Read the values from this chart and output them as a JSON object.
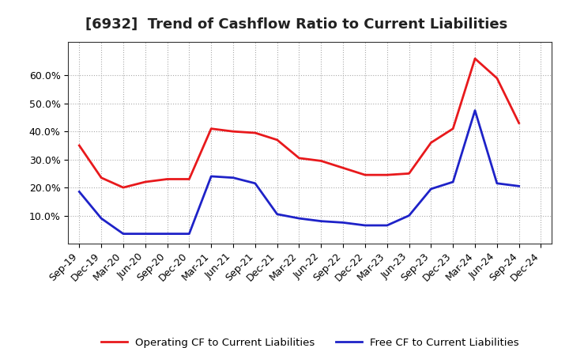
{
  "title": "[6932]  Trend of Cashflow Ratio to Current Liabilities",
  "x_labels": [
    "Sep-19",
    "Dec-19",
    "Mar-20",
    "Jun-20",
    "Sep-20",
    "Dec-20",
    "Mar-21",
    "Jun-21",
    "Sep-21",
    "Dec-21",
    "Mar-22",
    "Jun-22",
    "Sep-22",
    "Dec-22",
    "Mar-23",
    "Jun-23",
    "Sep-23",
    "Dec-23",
    "Mar-24",
    "Jun-24",
    "Sep-24",
    "Dec-24"
  ],
  "operating_cf": [
    0.35,
    0.235,
    0.2,
    0.22,
    0.23,
    0.23,
    0.41,
    0.4,
    0.395,
    0.37,
    0.305,
    0.295,
    0.27,
    0.245,
    0.245,
    0.25,
    0.36,
    0.41,
    0.66,
    0.59,
    0.43,
    null
  ],
  "free_cf": [
    0.185,
    0.09,
    0.035,
    0.035,
    0.035,
    0.035,
    0.24,
    0.235,
    0.215,
    0.105,
    0.09,
    0.08,
    0.075,
    0.065,
    0.065,
    0.1,
    0.195,
    0.22,
    0.475,
    0.215,
    0.205,
    null
  ],
  "operating_color": "#e8191c",
  "free_color": "#1e22c8",
  "ylim": [
    0.0,
    0.72
  ],
  "yticks": [
    0.1,
    0.2,
    0.3,
    0.4,
    0.5,
    0.6
  ],
  "legend_operating": "Operating CF to Current Liabilities",
  "legend_free": "Free CF to Current Liabilities",
  "background_color": "#ffffff",
  "plot_bg_color": "#ffffff",
  "title_fontsize": 13,
  "tick_fontsize": 9,
  "legend_fontsize": 9.5
}
